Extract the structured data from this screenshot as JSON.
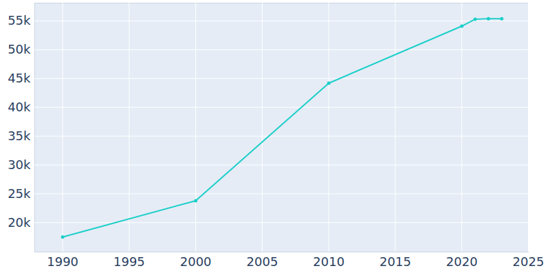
{
  "chart_data": {
    "type": "line",
    "x": [
      1990,
      2000,
      2010,
      2020,
      2021,
      2022,
      2023
    ],
    "values": [
      17500,
      23800,
      44200,
      54100,
      55300,
      55400,
      55400
    ],
    "color": "#1ccfc9",
    "marker": "circle",
    "xlim": [
      1987.9,
      2025
    ],
    "xticks": [
      1990,
      1995,
      2000,
      2005,
      2010,
      2015,
      2020,
      2025
    ],
    "ylim": [
      14900,
      58100
    ],
    "yticks": [
      {
        "value": 20000,
        "label": "20k"
      },
      {
        "value": 25000,
        "label": "25k"
      },
      {
        "value": 30000,
        "label": "30k"
      },
      {
        "value": 35000,
        "label": "35k"
      },
      {
        "value": 40000,
        "label": "40k"
      },
      {
        "value": 45000,
        "label": "45k"
      },
      {
        "value": 50000,
        "label": "50k"
      },
      {
        "value": 55000,
        "label": "55k"
      }
    ],
    "grid": true
  }
}
